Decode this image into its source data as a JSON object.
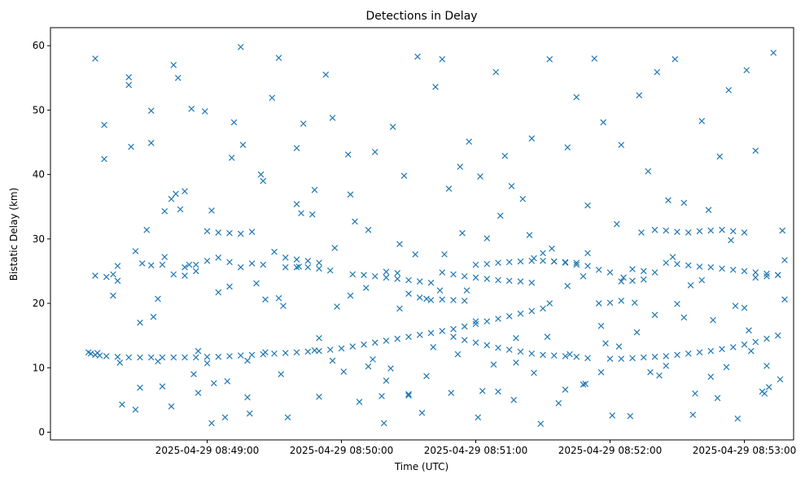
{
  "chart_data": {
    "type": "scatter",
    "title": "Detections in Delay",
    "xlabel": "Time (UTC)",
    "ylabel": "Bistatic Delay (km)",
    "x_unit": "timestamp",
    "xlim": [
      "2025-04-29 08:47:50",
      "2025-04-29 08:53:22"
    ],
    "ylim": [
      -1.2,
      62.8
    ],
    "xticks": [
      "2025-04-29 08:49:00",
      "2025-04-29 08:50:00",
      "2025-04-29 08:51:00",
      "2025-04-29 08:52:00",
      "2025-04-29 08:53:00"
    ],
    "yticks": [
      0,
      10,
      20,
      30,
      40,
      50,
      60
    ],
    "grid": false,
    "marker": "x",
    "color": "#1f77b4",
    "series": [
      {
        "name": "",
        "x": [
          "2025-04-29 08:48:07",
          "2025-04-29 08:48:08",
          "2025-04-29 08:48:10",
          "2025-04-29 08:48:12",
          "2025-04-29 08:48:15",
          "2025-04-29 08:48:20",
          "2025-04-29 08:48:25",
          "2025-04-29 08:48:30",
          "2025-04-29 08:48:35",
          "2025-04-29 08:48:40",
          "2025-04-29 08:48:45",
          "2025-04-29 08:48:50",
          "2025-04-29 08:48:55",
          "2025-04-29 08:49:00",
          "2025-04-29 08:49:05",
          "2025-04-29 08:49:10",
          "2025-04-29 08:49:15",
          "2025-04-29 08:49:20",
          "2025-04-29 08:49:25",
          "2025-04-29 08:49:30",
          "2025-04-29 08:49:35",
          "2025-04-29 08:49:40",
          "2025-04-29 08:49:45",
          "2025-04-29 08:49:50",
          "2025-04-29 08:49:55",
          "2025-04-29 08:50:00",
          "2025-04-29 08:50:05",
          "2025-04-29 08:50:10",
          "2025-04-29 08:50:15",
          "2025-04-29 08:50:20",
          "2025-04-29 08:50:25",
          "2025-04-29 08:50:30",
          "2025-04-29 08:50:35",
          "2025-04-29 08:50:40",
          "2025-04-29 08:50:45",
          "2025-04-29 08:50:50",
          "2025-04-29 08:50:55",
          "2025-04-29 08:51:00",
          "2025-04-29 08:51:05",
          "2025-04-29 08:51:10",
          "2025-04-29 08:51:15",
          "2025-04-29 08:51:20",
          "2025-04-29 08:51:25",
          "2025-04-29 08:51:30",
          "2025-04-29 08:50:50",
          "2025-04-29 08:50:55",
          "2025-04-29 08:51:00",
          "2025-04-29 08:51:05",
          "2025-04-29 08:51:10",
          "2025-04-29 08:51:15",
          "2025-04-29 08:51:20",
          "2025-04-29 08:51:25",
          "2025-04-29 08:51:30",
          "2025-04-29 08:51:35",
          "2025-04-29 08:51:40",
          "2025-04-29 08:51:45",
          "2025-04-29 08:51:50",
          "2025-04-29 08:52:00",
          "2025-04-29 08:52:05",
          "2025-04-29 08:52:10",
          "2025-04-29 08:52:15",
          "2025-04-29 08:52:20",
          "2025-04-29 08:52:25",
          "2025-04-29 08:52:30",
          "2025-04-29 08:52:35",
          "2025-04-29 08:52:40",
          "2025-04-29 08:52:45",
          "2025-04-29 08:52:50",
          "2025-04-29 08:52:55",
          "2025-04-29 08:53:00",
          "2025-04-29 08:53:05",
          "2025-04-29 08:53:10",
          "2025-04-29 08:53:15",
          "2025-04-29 08:48:10",
          "2025-04-29 08:48:14",
          "2025-04-29 08:48:18",
          "2025-04-29 08:48:21",
          "2025-04-29 08:48:25",
          "2025-04-29 08:48:28",
          "2025-04-29 08:48:31",
          "2025-04-29 08:48:35",
          "2025-04-29 08:48:38",
          "2025-04-29 08:48:41",
          "2025-04-29 08:48:44",
          "2025-04-29 08:48:47",
          "2025-04-29 08:48:50",
          "2025-04-29 08:48:53",
          "2025-04-29 08:48:56",
          "2025-04-29 08:48:59",
          "2025-04-29 08:49:02",
          "2025-04-29 08:49:05",
          "2025-04-29 08:49:09",
          "2025-04-29 08:49:12",
          "2025-04-29 08:49:15",
          "2025-04-29 08:49:19",
          "2025-04-29 08:49:22",
          "2025-04-29 08:49:25",
          "2025-04-29 08:49:29",
          "2025-04-29 08:49:32",
          "2025-04-29 08:49:36",
          "2025-04-29 08:49:40",
          "2025-04-29 08:49:43",
          "2025-04-29 08:49:47",
          "2025-04-29 08:49:50",
          "2025-04-29 08:49:53",
          "2025-04-29 08:49:57",
          "2025-04-29 08:50:01",
          "2025-04-29 08:50:04",
          "2025-04-29 08:50:08",
          "2025-04-29 08:50:12",
          "2025-04-29 08:50:15",
          "2025-04-29 08:50:19",
          "2025-04-29 08:50:23",
          "2025-04-29 08:50:26",
          "2025-04-29 08:50:30",
          "2025-04-29 08:50:34",
          "2025-04-29 08:50:38",
          "2025-04-29 08:50:42",
          "2025-04-29 08:50:45",
          "2025-04-29 08:50:49",
          "2025-04-29 08:50:53",
          "2025-04-29 08:50:57",
          "2025-04-29 08:51:01",
          "2025-04-29 08:51:05",
          "2025-04-29 08:51:09",
          "2025-04-29 08:51:13",
          "2025-04-29 08:51:17",
          "2025-04-29 08:51:21",
          "2025-04-29 08:51:25",
          "2025-04-29 08:51:29",
          "2025-04-29 08:51:33",
          "2025-04-29 08:51:37",
          "2025-04-29 08:51:41",
          "2025-04-29 08:51:45",
          "2025-04-29 08:51:49",
          "2025-04-29 08:51:53",
          "2025-04-29 08:51:57",
          "2025-04-29 08:52:01",
          "2025-04-29 08:52:05",
          "2025-04-29 08:52:09",
          "2025-04-29 08:52:13",
          "2025-04-29 08:52:17",
          "2025-04-29 08:52:21",
          "2025-04-29 08:52:25",
          "2025-04-29 08:52:29",
          "2025-04-29 08:52:33",
          "2025-04-29 08:52:37",
          "2025-04-29 08:52:41",
          "2025-04-29 08:52:45",
          "2025-04-29 08:52:49",
          "2025-04-29 08:52:53",
          "2025-04-29 08:52:57",
          "2025-04-29 08:53:01",
          "2025-04-29 08:53:05",
          "2025-04-29 08:53:09",
          "2025-04-29 08:53:13",
          "2025-04-29 08:53:17",
          "2025-04-29 08:48:25",
          "2025-04-29 08:48:30",
          "2025-04-29 08:48:35",
          "2025-04-29 08:48:40",
          "2025-04-29 08:48:45",
          "2025-04-29 08:48:50",
          "2025-04-29 08:48:55",
          "2025-04-29 08:49:00",
          "2025-04-29 08:49:05",
          "2025-04-29 08:49:10",
          "2025-04-29 08:49:15",
          "2025-04-29 08:49:20",
          "2025-04-29 08:49:25",
          "2025-04-29 08:49:30",
          "2025-04-29 08:49:35",
          "2025-04-29 08:49:40",
          "2025-04-29 08:49:45",
          "2025-04-29 08:49:50",
          "2025-04-29 08:49:55",
          "2025-04-29 08:50:20",
          "2025-04-29 08:50:25",
          "2025-04-29 08:50:30",
          "2025-04-29 08:50:35",
          "2025-04-29 08:50:40",
          "2025-04-29 08:50:45",
          "2025-04-29 08:50:50",
          "2025-04-29 08:50:55",
          "2025-04-29 08:51:00",
          "2025-04-29 08:51:05",
          "2025-04-29 08:51:10",
          "2025-04-29 08:51:15",
          "2025-04-29 08:51:20",
          "2025-04-29 08:51:25",
          "2025-04-29 08:51:30",
          "2025-04-29 08:51:35",
          "2025-04-29 08:51:40",
          "2025-04-29 08:51:45",
          "2025-04-29 08:51:50",
          "2025-04-29 08:51:55",
          "2025-04-29 08:52:00",
          "2025-04-29 08:52:05",
          "2025-04-29 08:52:10",
          "2025-04-29 08:52:15",
          "2025-04-29 08:52:20",
          "2025-04-29 08:52:25",
          "2025-04-29 08:52:30",
          "2025-04-29 08:52:35",
          "2025-04-29 08:52:40",
          "2025-04-29 08:52:45",
          "2025-04-29 08:52:50",
          "2025-04-29 08:52:55",
          "2025-04-29 08:53:00",
          "2025-04-29 08:53:05",
          "2025-04-29 08:53:10",
          "2025-04-29 08:53:15",
          "2025-04-29 08:48:10",
          "2025-04-29 08:48:15",
          "2025-04-29 08:48:20",
          "2025-04-29 08:48:35",
          "2025-04-29 08:48:40",
          "2025-04-29 08:48:45",
          "2025-04-29 08:48:50",
          "2025-04-29 08:48:55",
          "2025-04-29 08:49:00",
          "2025-04-29 08:49:05",
          "2025-04-29 08:49:10",
          "2025-04-29 08:49:15",
          "2025-04-29 08:49:20",
          "2025-04-29 08:49:35",
          "2025-04-29 08:49:40",
          "2025-04-29 08:49:45",
          "2025-04-29 08:49:50",
          "2025-04-29 08:50:05",
          "2025-04-29 08:50:10",
          "2025-04-29 08:50:15",
          "2025-04-29 08:50:20",
          "2025-04-29 08:50:25",
          "2025-04-29 08:50:30",
          "2025-04-29 08:50:35",
          "2025-04-29 08:50:40",
          "2025-04-29 08:50:45",
          "2025-04-29 08:50:50",
          "2025-04-29 08:50:55",
          "2025-04-29 08:51:00",
          "2025-04-29 08:51:05",
          "2025-04-29 08:51:10",
          "2025-04-29 08:51:15",
          "2025-04-29 08:51:20",
          "2025-04-29 08:51:25",
          "2025-04-29 08:51:30",
          "2025-04-29 08:51:35",
          "2025-04-29 08:51:40",
          "2025-04-29 08:51:45",
          "2025-04-29 08:51:50",
          "2025-04-29 08:51:55",
          "2025-04-29 08:52:00",
          "2025-04-29 08:52:05",
          "2025-04-29 08:52:10",
          "2025-04-29 08:52:15",
          "2025-04-29 08:52:20",
          "2025-04-29 08:52:25",
          "2025-04-29 08:52:30",
          "2025-04-29 08:52:35",
          "2025-04-29 08:52:40",
          "2025-04-29 08:52:45",
          "2025-04-29 08:52:50",
          "2025-04-29 08:52:55",
          "2025-04-29 08:53:00",
          "2025-04-29 08:53:05",
          "2025-04-29 08:53:10",
          "2025-04-29 08:53:15",
          "2025-04-29 08:48:20",
          "2025-04-29 08:48:28",
          "2025-04-29 08:48:36",
          "2025-04-29 08:48:44",
          "2025-04-29 08:48:52",
          "2025-04-29 08:49:00",
          "2025-04-29 08:49:08",
          "2025-04-29 08:49:16",
          "2025-04-29 08:49:24",
          "2025-04-29 08:49:32",
          "2025-04-29 08:49:40",
          "2025-04-29 08:49:48",
          "2025-04-29 08:49:56",
          "2025-04-29 08:50:04",
          "2025-04-29 08:50:12",
          "2025-04-29 08:50:20",
          "2025-04-29 08:50:28",
          "2025-04-29 08:50:36",
          "2025-04-29 08:50:44",
          "2025-04-29 08:50:52",
          "2025-04-29 08:51:00",
          "2025-04-29 08:51:08",
          "2025-04-29 08:51:16",
          "2025-04-29 08:51:24",
          "2025-04-29 08:51:32",
          "2025-04-29 08:51:40",
          "2025-04-29 08:51:48",
          "2025-04-29 08:51:56",
          "2025-04-29 08:52:04",
          "2025-04-29 08:52:12",
          "2025-04-29 08:52:20",
          "2025-04-29 08:52:28",
          "2025-04-29 08:52:36",
          "2025-04-29 08:52:44",
          "2025-04-29 08:52:52",
          "2025-04-29 08:53:00",
          "2025-04-29 08:53:08",
          "2025-04-29 08:53:16",
          "2025-04-29 08:48:14",
          "2025-04-29 08:48:22",
          "2025-04-29 08:48:30",
          "2025-04-29 08:48:38",
          "2025-04-29 08:48:46",
          "2025-04-29 08:48:54",
          "2025-04-29 08:49:02",
          "2025-04-29 08:49:10",
          "2025-04-29 08:49:18",
          "2025-04-29 08:49:26",
          "2025-04-29 08:49:34",
          "2025-04-29 08:49:42",
          "2025-04-29 08:49:50",
          "2025-04-29 08:49:58",
          "2025-04-29 08:50:06",
          "2025-04-29 08:50:14",
          "2025-04-29 08:50:22",
          "2025-04-29 08:50:30",
          "2025-04-29 08:50:38",
          "2025-04-29 08:50:46",
          "2025-04-29 08:50:54",
          "2025-04-29 08:51:02",
          "2025-04-29 08:51:10",
          "2025-04-29 08:51:18",
          "2025-04-29 08:51:26",
          "2025-04-29 08:51:34",
          "2025-04-29 08:51:42",
          "2025-04-29 08:51:50",
          "2025-04-29 08:51:58",
          "2025-04-29 08:52:06",
          "2025-04-29 08:52:14",
          "2025-04-29 08:52:22",
          "2025-04-29 08:52:30",
          "2025-04-29 08:52:38",
          "2025-04-29 08:52:46",
          "2025-04-29 08:52:54",
          "2025-04-29 08:53:02",
          "2025-04-29 08:53:10",
          "2025-04-29 08:53:18",
          "2025-04-29 08:48:11",
          "2025-04-29 08:48:18",
          "2025-04-29 08:48:26",
          "2025-04-29 08:48:33",
          "2025-04-29 08:48:41",
          "2025-04-29 08:48:48",
          "2025-04-29 08:48:56",
          "2025-04-29 08:49:03",
          "2025-04-29 08:49:11",
          "2025-04-29 08:49:18",
          "2025-04-29 08:49:26",
          "2025-04-29 08:49:33",
          "2025-04-29 08:49:41",
          "2025-04-29 08:49:48",
          "2025-04-29 08:49:56",
          "2025-04-29 08:50:03",
          "2025-04-29 08:50:11",
          "2025-04-29 08:50:18",
          "2025-04-29 08:50:26",
          "2025-04-29 08:50:33",
          "2025-04-29 08:50:41",
          "2025-04-29 08:50:48",
          "2025-04-29 08:50:56",
          "2025-04-29 08:51:03",
          "2025-04-29 08:51:11",
          "2025-04-29 08:51:18",
          "2025-04-29 08:51:26",
          "2025-04-29 08:51:33",
          "2025-04-29 08:51:41",
          "2025-04-29 08:51:48",
          "2025-04-29 08:51:56",
          "2025-04-29 08:52:03",
          "2025-04-29 08:52:11",
          "2025-04-29 08:52:18",
          "2025-04-29 08:52:26",
          "2025-04-29 08:52:33",
          "2025-04-29 08:52:41",
          "2025-04-29 08:52:48",
          "2025-04-29 08:52:56",
          "2025-04-29 08:53:03",
          "2025-04-29 08:53:11",
          "2025-04-29 08:53:18"
        ],
        "y": [
          12.4,
          12.2,
          12.0,
          11.9,
          11.8,
          11.7,
          11.6,
          11.6,
          11.6,
          11.6,
          11.6,
          11.6,
          11.6,
          11.7,
          11.7,
          11.8,
          11.9,
          12.0,
          12.1,
          12.2,
          12.3,
          12.4,
          12.5,
          12.6,
          12.8,
          13.0,
          13.3,
          13.6,
          13.9,
          14.2,
          14.5,
          14.8,
          15.1,
          15.4,
          15.7,
          16.0,
          16.4,
          16.8,
          17.2,
          17.6,
          18.0,
          18.4,
          18.8,
          19.2,
          14.8,
          14.3,
          13.9,
          13.5,
          13.1,
          12.8,
          12.5,
          12.2,
          12.0,
          11.9,
          11.8,
          11.7,
          11.5,
          11.4,
          11.4,
          11.5,
          11.6,
          11.7,
          11.8,
          12.0,
          12.2,
          12.4,
          12.6,
          12.9,
          13.2,
          13.6,
          14.0,
          14.5,
          15.0,
          58.0,
          42.4,
          24.5,
          10.8,
          53.9,
          3.5,
          26.2,
          44.9,
          20.7,
          34.3,
          4.0,
          55.0,
          37.4,
          50.2,
          6.1,
          49.8,
          1.4,
          21.7,
          7.9,
          48.1,
          59.8,
          2.9,
          23.1,
          39.0,
          51.9,
          58.1,
          2.3,
          44.1,
          47.9,
          33.8,
          5.5,
          55.5,
          28.6,
          9.4,
          36.9,
          4.7,
          31.4,
          43.5,
          1.4,
          47.4,
          29.2,
          5.7,
          58.3,
          8.7,
          53.6,
          57.9,
          6.1,
          41.2,
          45.1,
          2.3,
          30.1,
          55.9,
          42.9,
          5.0,
          36.2,
          45.6,
          1.3,
          57.9,
          4.5,
          22.7,
          52.0,
          7.5,
          58.0,
          48.1,
          2.6,
          44.6,
          2.5,
          52.3,
          40.5,
          55.9,
          10.3,
          57.9,
          35.6,
          2.7,
          48.3,
          8.6,
          42.8,
          53.1,
          2.1,
          56.2,
          43.7,
          6.0,
          58.9,
          31.3,
          55.1,
          6.9,
          49.9,
          7.1,
          57.0,
          25.6,
          26.0,
          26.6,
          27.1,
          26.4,
          25.6,
          26.2,
          26.0,
          28.0,
          25.6,
          25.6,
          25.6,
          25.4,
          25.1,
          24.9,
          24.7,
          21.5,
          20.9,
          20.5,
          24.8,
          24.5,
          24.2,
          24.0,
          23.8,
          23.6,
          23.5,
          23.4,
          23.2,
          27.8,
          26.5,
          26.3,
          26.0,
          27.8,
          20.0,
          20.1,
          20.4,
          25.3,
          25.0,
          24.8,
          26.3,
          26.1,
          25.9,
          25.7,
          25.6,
          25.4,
          25.2,
          25.0,
          24.8,
          24.6,
          24.4,
          24.3,
          24.1,
          25.8,
          25.9,
          26.0,
          24.5,
          24.3,
          25.0,
          31.2,
          31.0,
          30.9,
          30.8,
          31.1,
          27.1,
          26.8,
          26.6,
          26.3,
          24.5,
          24.4,
          24.2,
          24.0,
          23.8,
          23.6,
          23.4,
          23.2,
          20.6,
          20.5,
          20.4,
          26.0,
          26.1,
          26.3,
          26.4,
          26.5,
          26.6,
          26.6,
          26.5,
          26.4,
          26.3,
          25.8,
          25.2,
          24.8,
          23.4,
          23.5,
          23.7,
          31.4,
          31.3,
          31.1,
          31.0,
          31.2,
          31.3,
          31.4,
          31.2,
          31.0,
          24.0,
          24.2,
          24.4,
          23.5,
          28.1,
          17.9,
          36.2,
          26.0,
          10.7,
          2.3,
          44.6,
          40.0,
          20.8,
          35.4,
          12.7,
          48.8,
          21.2,
          10.2,
          8.0,
          39.8,
          3.0,
          22.0,
          12.1,
          17.2,
          10.5,
          38.2,
          30.6,
          14.8,
          6.6,
          24.2,
          9.3,
          13.3,
          15.5,
          18.2,
          27.2,
          22.8,
          34.5,
          10.1,
          19.3,
          6.3,
          8.2,
          47.7,
          4.3,
          17.0,
          11.0,
          37.0,
          9.0,
          34.4,
          22.6,
          5.4,
          12.4,
          19.6,
          34.0,
          14.6,
          19.5,
          32.7,
          11.3,
          9.9,
          5.9,
          20.7,
          27.6,
          30.9,
          39.7,
          6.3,
          14.6,
          9.2,
          28.5,
          12.1,
          35.2,
          13.8,
          24.0,
          31.0,
          8.8,
          19.9,
          6.0,
          17.4,
          29.8,
          15.8,
          10.3,
          20.6,
          12.3,
          21.2,
          44.3,
          31.4,
          27.2,
          34.6,
          12.6,
          7.6,
          42.6,
          11.1,
          20.6,
          9.0,
          25.7,
          37.6,
          11.1,
          43.1,
          22.4,
          5.6,
          19.2,
          27.6,
          13.2,
          37.8,
          22.0,
          6.4,
          33.6,
          10.8,
          27.0,
          20.0,
          44.2,
          7.4,
          16.5,
          32.3,
          20.1,
          9.3,
          36.0,
          17.8,
          23.6,
          5.3,
          19.6,
          12.6,
          7.0,
          26.7
        ]
      }
    ]
  }
}
